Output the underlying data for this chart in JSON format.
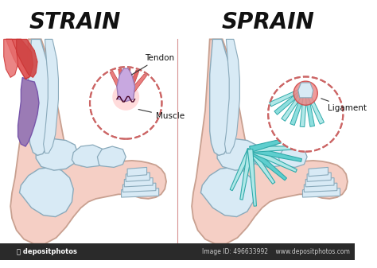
{
  "bg_color": "#ffffff",
  "title_left": "STRAIN",
  "title_right": "SPRAIN",
  "title_fontsize": 20,
  "title_fontweight": "bold",
  "label_muscle": "Muscle",
  "label_tendon": "Tendon",
  "label_ligament": "Ligament",
  "divider_color": "#cc7777",
  "skin_fill": "#f5cfc5",
  "skin_edge": "#c8a090",
  "bone_fill": "#d8eaf5",
  "bone_edge": "#8aaabb",
  "muscle_red": "#e05555",
  "muscle_red2": "#cc3333",
  "tendon_purple": "#9b7bb5",
  "ligament_cyan": "#5ecece",
  "ligament_light": "#b0e8e8",
  "ligament_dark": "#30aaaa",
  "circle_edge": "#cc6666",
  "watermark": "depositphotos",
  "watermark_id": "496633992"
}
